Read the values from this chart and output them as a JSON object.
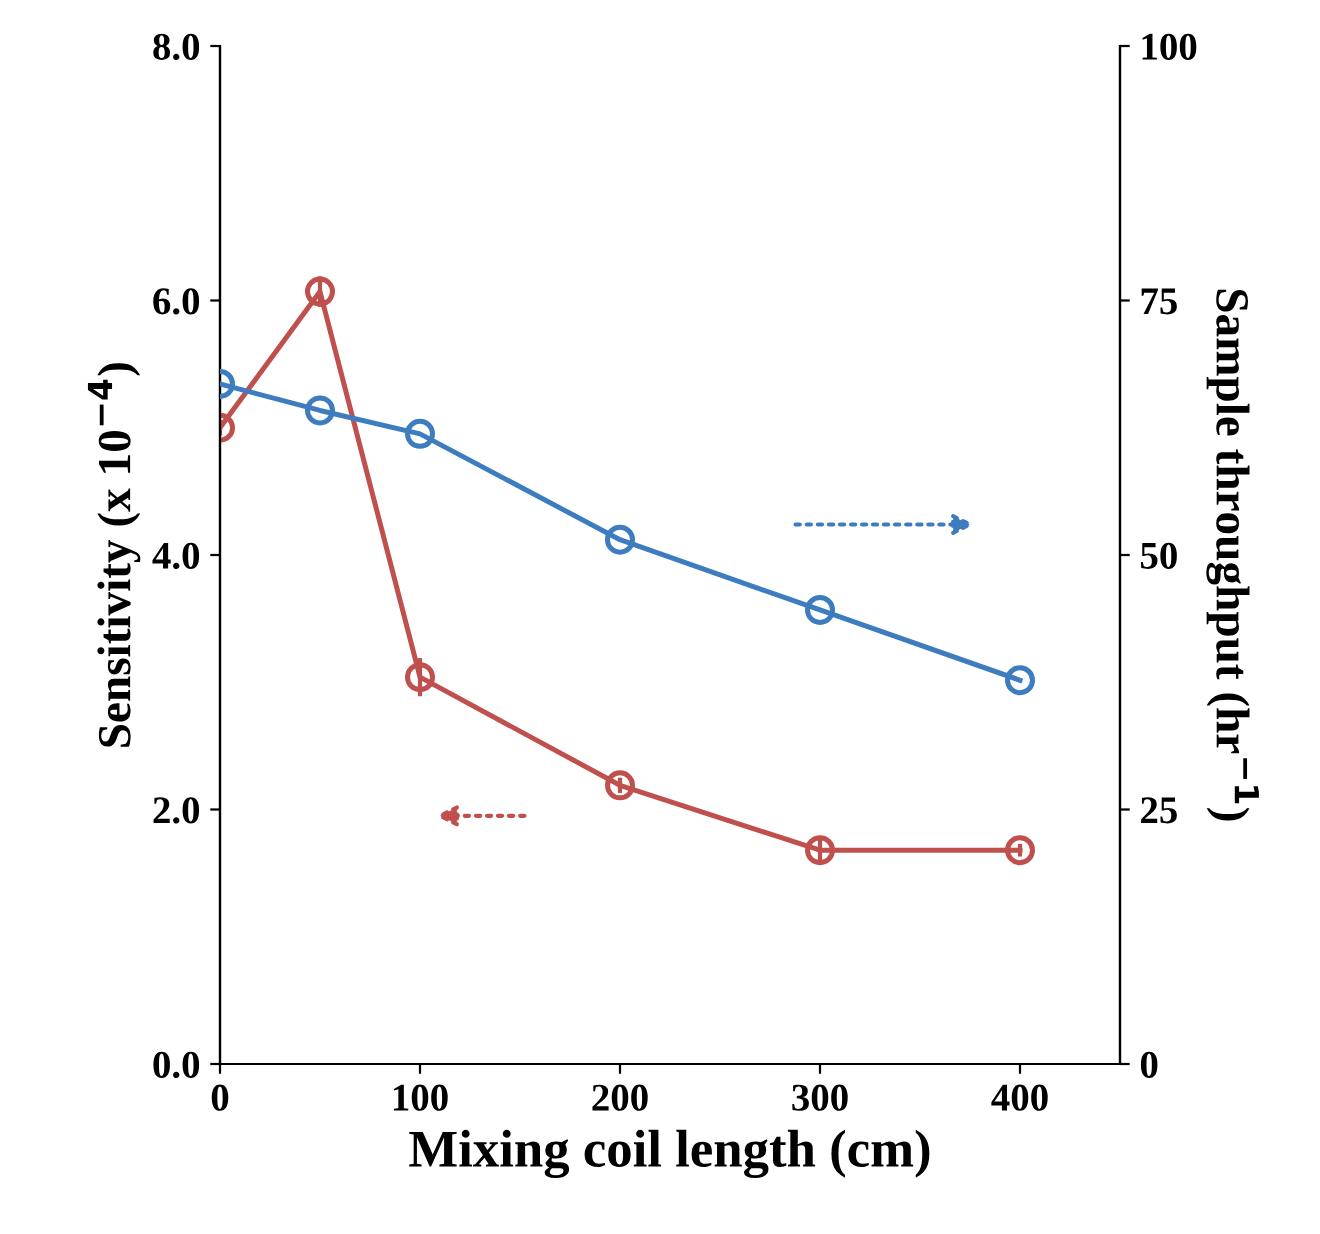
{
  "chart_data": {
    "type": "line",
    "xlabel": "Mixing coil length (cm)",
    "ylabel": "Sensitivity (x 10$^{−4}$)",
    "y2label": "Sample throughput (hr$^{−1}$)",
    "x": [
      0,
      50,
      100,
      200,
      300,
      400
    ],
    "series": [
      {
        "color": "#c0504d",
        "values": [
          5.0,
          6.07,
          3.04,
          2.19,
          1.68,
          1.68
        ],
        "errors": [
          0.06,
          0.12,
          0.15,
          0.06,
          0.1,
          0.05
        ]
      },
      {
        "color": "#3e7cc0",
        "axis": "y2",
        "values": [
          66.8,
          64.2,
          61.9,
          51.5,
          44.6,
          37.7
        ],
        "x": [
          0,
          50,
          100,
          200,
          300,
          400
        ]
      }
    ],
    "xlim": [
      0,
      450
    ],
    "xticks": [
      0,
      100,
      200,
      300,
      400
    ],
    "ylim": [
      0,
      8
    ],
    "yticks": [
      {
        "value": 0,
        "label": "0.0"
      },
      {
        "value": 2,
        "label": "2.0"
      },
      {
        "value": 4,
        "label": "4.0"
      },
      {
        "value": 6,
        "label": "6.0"
      },
      {
        "value": 8,
        "label": "8.0"
      }
    ],
    "y2lim": [
      0,
      100
    ],
    "y2ticks": [
      0,
      25,
      50,
      75,
      100
    ],
    "marker": "circle",
    "line_style": "solid",
    "grid": false,
    "legend": false
  }
}
